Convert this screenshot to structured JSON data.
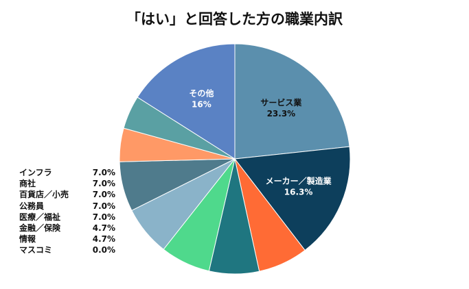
{
  "chart_data": {
    "type": "pie",
    "title": "「はい」と回答した方の職業内訳",
    "slices": [
      {
        "label": "サービス業",
        "value": 23.3,
        "color": "#5b8fad",
        "show_label": true
      },
      {
        "label": "メーカー／製造業",
        "value": 16.3,
        "color": "#0d3f5c",
        "show_label": true
      },
      {
        "label": "インフラ",
        "value": 7.0,
        "color": "#ff6b35",
        "show_label": false
      },
      {
        "label": "商社",
        "value": 7.0,
        "color": "#1f7680",
        "show_label": false
      },
      {
        "label": "百貨店／小売",
        "value": 7.0,
        "color": "#4fd98c",
        "show_label": false
      },
      {
        "label": "公務員",
        "value": 7.0,
        "color": "#8ab3c9",
        "show_label": false
      },
      {
        "label": "医療／福祉",
        "value": 7.0,
        "color": "#4f7b8c",
        "show_label": false
      },
      {
        "label": "金融／保険",
        "value": 4.7,
        "color": "#ff9966",
        "show_label": false
      },
      {
        "label": "情報",
        "value": 4.7,
        "color": "#5aa0a3",
        "show_label": false
      },
      {
        "label": "マスコミ",
        "value": 0.0,
        "color": "#cccccc",
        "show_label": false
      },
      {
        "label": "その他",
        "value": 16,
        "color": "#5a82c4",
        "show_label": true,
        "display_value": "16%"
      }
    ],
    "legend": [
      {
        "name": "インフラ",
        "value": "7.0%"
      },
      {
        "name": "商社",
        "value": "7.0%"
      },
      {
        "name": "百貨店／小売",
        "value": "7.0%"
      },
      {
        "name": "公務員",
        "value": "7.0%"
      },
      {
        "name": "医療／福祉",
        "value": "7.0%"
      },
      {
        "name": "金融／保険",
        "value": "4.7%"
      },
      {
        "name": "情報",
        "value": "4.7%"
      },
      {
        "name": "マスコミ",
        "value": "0.0%"
      }
    ],
    "legend_placement": "bottom-left"
  }
}
